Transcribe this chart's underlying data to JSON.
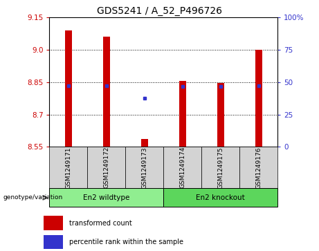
{
  "title": "GDS5241 / A_52_P496726",
  "samples": [
    "GSM1249171",
    "GSM1249172",
    "GSM1249173",
    "GSM1249174",
    "GSM1249175",
    "GSM1249176"
  ],
  "bar_bottom": 8.55,
  "bar_tops": [
    9.09,
    9.06,
    8.585,
    8.855,
    8.845,
    9.0
  ],
  "blue_y": [
    8.835,
    8.832,
    8.775,
    8.829,
    8.829,
    8.832
  ],
  "ylim": [
    8.55,
    9.15
  ],
  "yticks_left": [
    8.55,
    8.7,
    8.85,
    9.0,
    9.15
  ],
  "yticks_right_vals": [
    8.55,
    8.7,
    8.85,
    9.0,
    9.15
  ],
  "right_tick_labels": [
    "0",
    "25",
    "50",
    "75",
    "100%"
  ],
  "bar_color": "#cc0000",
  "blue_color": "#3333cc",
  "bar_width": 0.18,
  "groups": [
    {
      "label": "En2 wildtype",
      "indices": [
        0,
        1,
        2
      ],
      "color": "#90ee90"
    },
    {
      "label": "En2 knockout",
      "indices": [
        3,
        4,
        5
      ],
      "color": "#5cd65c"
    }
  ],
  "legend_items": [
    {
      "color": "#cc0000",
      "label": "transformed count"
    },
    {
      "color": "#3333cc",
      "label": "percentile rank within the sample"
    }
  ],
  "title_fontsize": 10,
  "tick_fontsize": 7.5,
  "sample_tick_fontsize": 6.5,
  "left_tick_color": "#cc0000",
  "right_tick_color": "#3333cc",
  "sample_label_bg": "#d3d3d3",
  "grid_color": "#000000"
}
